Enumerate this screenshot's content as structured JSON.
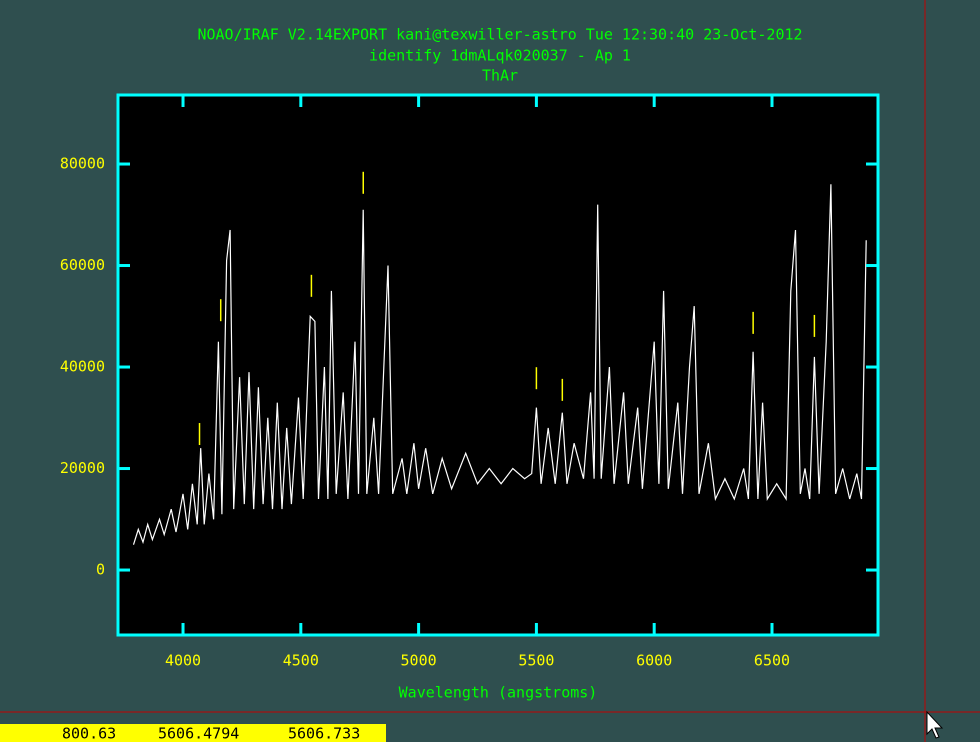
{
  "chart_data": {
    "type": "line",
    "title": "NOAO/IRAF V2.14EXPORT kani@texwiller-astro Tue 12:30:40 23-Oct-2012",
    "subtitle": "identify 1dmALqk020037 - Ap 1",
    "annotation": "ThAr",
    "x_label": "Wavelength (angstroms)",
    "color": "#ffffff",
    "x": [
      3790,
      3810,
      3830,
      3850,
      3870,
      3900,
      3920,
      3950,
      3970,
      4000,
      4020,
      4040,
      4060,
      4075,
      4090,
      4110,
      4130,
      4150,
      4165,
      4185,
      4200,
      4215,
      4240,
      4260,
      4280,
      4300,
      4320,
      4340,
      4360,
      4380,
      4400,
      4420,
      4440,
      4460,
      4490,
      4510,
      4540,
      4560,
      4575,
      4600,
      4615,
      4630,
      4650,
      4680,
      4700,
      4730,
      4745,
      4765,
      4780,
      4810,
      4830,
      4870,
      4890,
      4930,
      4950,
      4980,
      5000,
      5030,
      5060,
      5100,
      5140,
      5200,
      5250,
      5300,
      5350,
      5400,
      5450,
      5480,
      5500,
      5520,
      5550,
      5580,
      5610,
      5630,
      5660,
      5700,
      5730,
      5745,
      5760,
      5775,
      5810,
      5830,
      5870,
      5890,
      5930,
      5950,
      6000,
      6020,
      6040,
      6060,
      6100,
      6120,
      6150,
      6170,
      6190,
      6230,
      6260,
      6300,
      6340,
      6380,
      6400,
      6420,
      6440,
      6460,
      6480,
      6520,
      6560,
      6580,
      6600,
      6620,
      6640,
      6660,
      6680,
      6700,
      6730,
      6750,
      6770,
      6800,
      6830,
      6860,
      6880,
      6900
    ],
    "values": [
      5000,
      8000,
      5500,
      9000,
      6000,
      10000,
      7000,
      12000,
      7500,
      15000,
      8000,
      17000,
      9000,
      24000,
      9000,
      19000,
      10000,
      45000,
      11000,
      61000,
      67000,
      12000,
      38000,
      13000,
      39000,
      12000,
      36000,
      13000,
      30000,
      12000,
      33000,
      12000,
      28000,
      13000,
      34000,
      14000,
      50000,
      49000,
      14000,
      40000,
      14000,
      55000,
      15000,
      35000,
      14000,
      45000,
      15000,
      71000,
      15000,
      30000,
      15000,
      60000,
      15000,
      22000,
      15000,
      25000,
      16000,
      24000,
      15000,
      22000,
      16000,
      23000,
      17000,
      20000,
      17000,
      20000,
      18000,
      19000,
      32000,
      17000,
      28000,
      17000,
      31000,
      17000,
      25000,
      18000,
      35000,
      18000,
      72000,
      18000,
      40000,
      17000,
      35000,
      17000,
      32000,
      16000,
      45000,
      17000,
      55000,
      16000,
      33000,
      15000,
      40000,
      52000,
      15000,
      25000,
      14000,
      18000,
      14000,
      20000,
      14000,
      43000,
      14000,
      33000,
      14000,
      17000,
      14000,
      55000,
      67000,
      15000,
      20000,
      14000,
      42000,
      15000,
      45000,
      76000,
      15000,
      20000,
      14000,
      19000,
      14000,
      65000
    ],
    "line_markers": {
      "color": "#ffff00",
      "x": [
        4070,
        4160,
        4545,
        4765,
        5500,
        5610,
        6420,
        6680
      ],
      "y": [
        26800,
        51200,
        56000,
        76300,
        37800,
        35500,
        48700,
        48100
      ]
    },
    "xlim": [
      3724,
      6950
    ],
    "ylim": [
      -12800,
      93600
    ],
    "xticks": [
      4000,
      4500,
      5000,
      5500,
      6000,
      6500
    ],
    "yticks": [
      0,
      20000,
      40000,
      60000,
      80000
    ]
  },
  "status_bar": {
    "fields": [
      "800.63",
      "5606.4794",
      "5606.733"
    ]
  }
}
